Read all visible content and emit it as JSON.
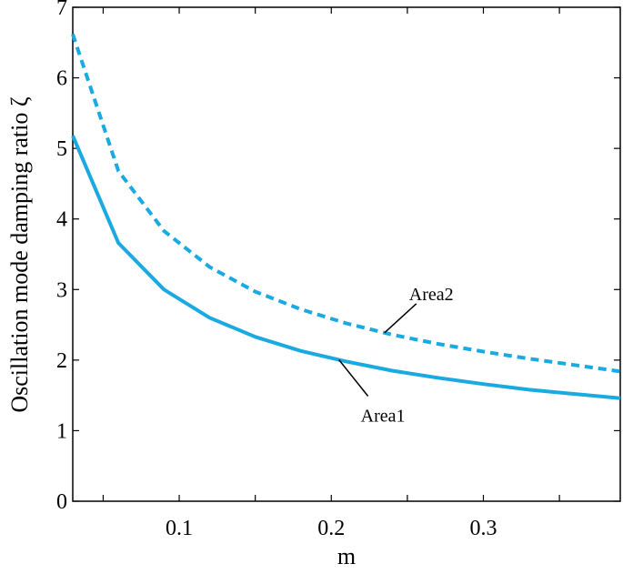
{
  "chart_data": {
    "type": "line",
    "xlabel": "m",
    "ylabel": "Oscillation mode damping ratio ζ",
    "xlim": [
      0.03,
      0.39
    ],
    "ylim": [
      0,
      7
    ],
    "xticks": [
      0.1,
      0.2,
      0.3
    ],
    "xtick_labels": [
      "0.1",
      "0.2",
      "0.3"
    ],
    "yticks": [
      0,
      1,
      2,
      3,
      4,
      5,
      6,
      7
    ],
    "ytick_labels": [
      "0",
      "1",
      "2",
      "3",
      "4",
      "5",
      "6",
      "7"
    ],
    "grid": false,
    "series": [
      {
        "name": "Area1",
        "style": "solid",
        "color": "#1aa9e1",
        "x": [
          0.03,
          0.06,
          0.09,
          0.12,
          0.15,
          0.18,
          0.21,
          0.24,
          0.27,
          0.3,
          0.33,
          0.36,
          0.39
        ],
        "y": [
          5.18,
          3.66,
          3.0,
          2.6,
          2.33,
          2.13,
          1.98,
          1.85,
          1.75,
          1.66,
          1.58,
          1.52,
          1.46
        ]
      },
      {
        "name": "Area2",
        "style": "dashed",
        "color": "#1aa9e1",
        "x": [
          0.03,
          0.06,
          0.09,
          0.12,
          0.15,
          0.18,
          0.21,
          0.24,
          0.27,
          0.3,
          0.33,
          0.36,
          0.39
        ],
        "y": [
          6.62,
          4.68,
          3.83,
          3.32,
          2.97,
          2.72,
          2.52,
          2.36,
          2.23,
          2.12,
          2.02,
          1.93,
          1.84
        ]
      }
    ],
    "annotations": [
      {
        "text": "Area1",
        "series": 0
      },
      {
        "text": "Area2",
        "series": 1
      }
    ]
  }
}
